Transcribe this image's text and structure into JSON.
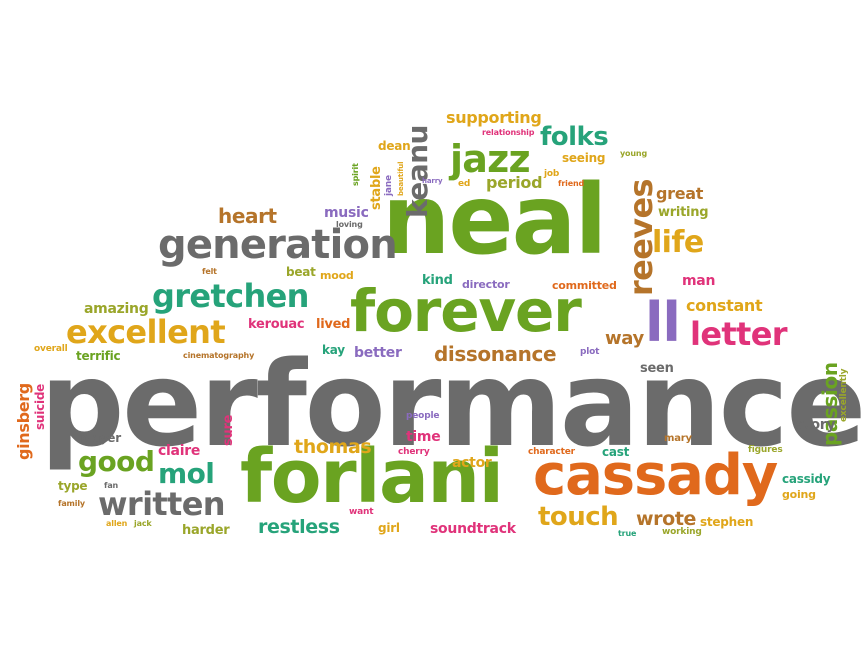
{
  "palette": {
    "gray": "#6b6b6b",
    "green": "#6aa321",
    "teal": "#26a37a",
    "orange": "#e0691c",
    "gold": "#e0a61a",
    "purple": "#8a6bbf",
    "magenta": "#e0337a",
    "brown": "#b5742a",
    "olive": "#9aa62a"
  },
  "words": [
    {
      "text": "performance",
      "color": "gray"
    },
    {
      "text": "neal",
      "color": "green"
    },
    {
      "text": "forlani",
      "color": "green"
    },
    {
      "text": "cassady",
      "color": "orange"
    },
    {
      "text": "forever",
      "color": "green"
    },
    {
      "text": "generation",
      "color": "gray"
    },
    {
      "text": "gretchen",
      "color": "teal"
    },
    {
      "text": "excellent",
      "color": "gold"
    },
    {
      "text": "written",
      "color": "gray"
    },
    {
      "text": "good",
      "color": "green"
    },
    {
      "text": "mol",
      "color": "teal"
    },
    {
      "text": "jazz",
      "color": "green"
    },
    {
      "text": "folks",
      "color": "teal"
    },
    {
      "text": "reeves",
      "color": "brown"
    },
    {
      "text": "keanu",
      "color": "gray"
    },
    {
      "text": "life",
      "color": "gold"
    },
    {
      "text": "ll",
      "color": "purple"
    },
    {
      "text": "letter",
      "color": "magenta"
    },
    {
      "text": "touch",
      "color": "gold"
    },
    {
      "text": "dissonance",
      "color": "brown"
    },
    {
      "text": "restless",
      "color": "teal"
    },
    {
      "text": "thomas",
      "color": "gold"
    },
    {
      "text": "wrote",
      "color": "brown"
    },
    {
      "text": "passion",
      "color": "green"
    },
    {
      "text": "heart",
      "color": "brown"
    },
    {
      "text": "supporting",
      "color": "gold"
    },
    {
      "text": "period",
      "color": "olive"
    },
    {
      "text": "great",
      "color": "brown"
    },
    {
      "text": "writing",
      "color": "olive"
    },
    {
      "text": "way",
      "color": "brown"
    },
    {
      "text": "constant",
      "color": "gold"
    },
    {
      "text": "man",
      "color": "magenta"
    },
    {
      "text": "ginsberg",
      "color": "orange"
    },
    {
      "text": "suicide",
      "color": "magenta"
    },
    {
      "text": "amazing",
      "color": "olive"
    },
    {
      "text": "terrific",
      "color": "green"
    },
    {
      "text": "overall",
      "color": "gold"
    },
    {
      "text": "kerouac",
      "color": "magenta"
    },
    {
      "text": "lived",
      "color": "orange"
    },
    {
      "text": "better",
      "color": "purple"
    },
    {
      "text": "kay",
      "color": "teal"
    },
    {
      "text": "cinematography",
      "color": "brown"
    },
    {
      "text": "plot",
      "color": "purple"
    },
    {
      "text": "seen",
      "color": "gray"
    },
    {
      "text": "story",
      "color": "gray"
    },
    {
      "text": "excellently",
      "color": "olive"
    },
    {
      "text": "mary",
      "color": "brown"
    },
    {
      "text": "figures",
      "color": "olive"
    },
    {
      "text": "cassidy",
      "color": "teal"
    },
    {
      "text": "going",
      "color": "gold"
    },
    {
      "text": "cast",
      "color": "teal"
    },
    {
      "text": "character",
      "color": "orange"
    },
    {
      "text": "actor",
      "color": "gold"
    },
    {
      "text": "time",
      "color": "magenta"
    },
    {
      "text": "cherry",
      "color": "magenta"
    },
    {
      "text": "people",
      "color": "purple"
    },
    {
      "text": "sure",
      "color": "magenta"
    },
    {
      "text": "claire",
      "color": "magenta"
    },
    {
      "text": "player",
      "color": "gray"
    },
    {
      "text": "fan",
      "color": "gray"
    },
    {
      "text": "type",
      "color": "olive"
    },
    {
      "text": "family",
      "color": "brown"
    },
    {
      "text": "allen",
      "color": "gold"
    },
    {
      "text": "jack",
      "color": "olive"
    },
    {
      "text": "harder",
      "color": "olive"
    },
    {
      "text": "want",
      "color": "magenta"
    },
    {
      "text": "girl",
      "color": "gold"
    },
    {
      "text": "soundtrack",
      "color": "magenta"
    },
    {
      "text": "true",
      "color": "teal"
    },
    {
      "text": "working",
      "color": "olive"
    },
    {
      "text": "stephen",
      "color": "gold"
    },
    {
      "text": "music",
      "color": "purple"
    },
    {
      "text": "loving",
      "color": "gray"
    },
    {
      "text": "felt",
      "color": "brown"
    },
    {
      "text": "beat",
      "color": "olive"
    },
    {
      "text": "mood",
      "color": "gold"
    },
    {
      "text": "kind",
      "color": "teal"
    },
    {
      "text": "director",
      "color": "purple"
    },
    {
      "text": "committed",
      "color": "orange"
    },
    {
      "text": "dean",
      "color": "gold"
    },
    {
      "text": "spirit",
      "color": "green"
    },
    {
      "text": "stable",
      "color": "gold"
    },
    {
      "text": "jane",
      "color": "purple"
    },
    {
      "text": "beautiful",
      "color": "gold"
    },
    {
      "text": "harry",
      "color": "purple"
    },
    {
      "text": "ed",
      "color": "gold"
    },
    {
      "text": "relationship",
      "color": "magenta"
    },
    {
      "text": "seeing",
      "color": "gold"
    },
    {
      "text": "young",
      "color": "olive"
    },
    {
      "text": "job",
      "color": "gold"
    },
    {
      "text": "friend",
      "color": "orange"
    }
  ]
}
